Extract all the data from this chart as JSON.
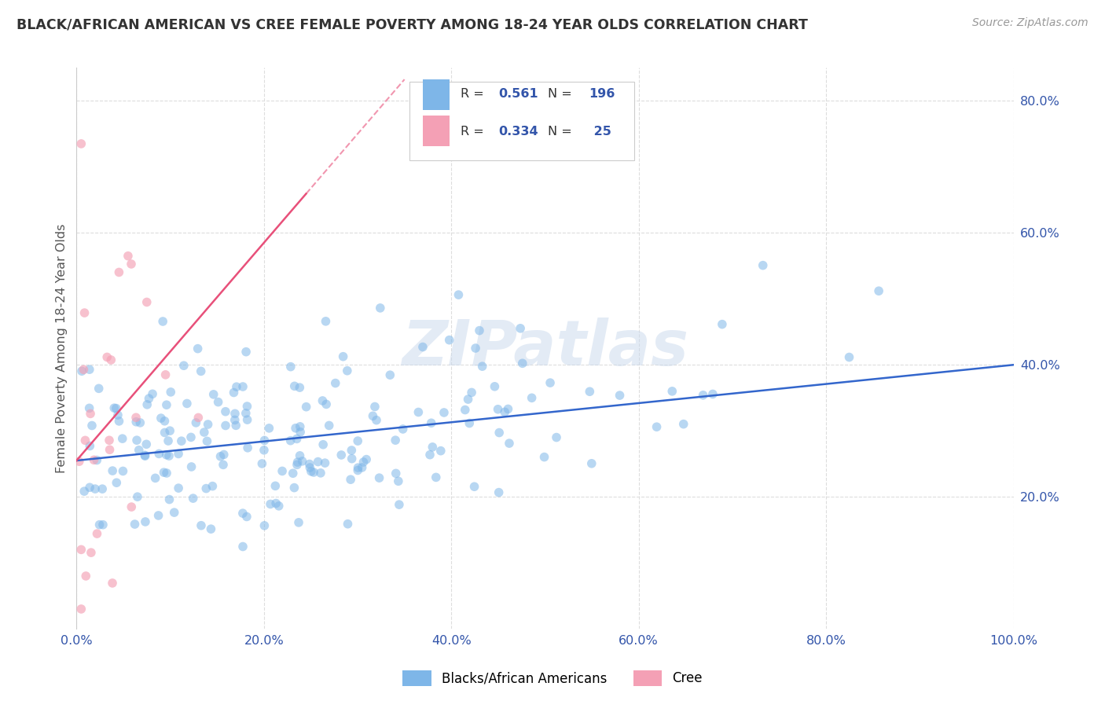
{
  "title": "BLACK/AFRICAN AMERICAN VS CREE FEMALE POVERTY AMONG 18-24 YEAR OLDS CORRELATION CHART",
  "source": "Source: ZipAtlas.com",
  "ylabel": "Female Poverty Among 18-24 Year Olds",
  "xlim": [
    0,
    1.0
  ],
  "ylim": [
    0,
    0.85
  ],
  "xticks": [
    0.0,
    0.2,
    0.4,
    0.6,
    0.8,
    1.0
  ],
  "xticklabels": [
    "0.0%",
    "20.0%",
    "40.0%",
    "60.0%",
    "80.0%",
    "100.0%"
  ],
  "yticks_right": [
    0.2,
    0.4,
    0.6,
    0.8
  ],
  "yticklabels_right": [
    "20.0%",
    "40.0%",
    "60.0%",
    "80.0%"
  ],
  "blue_R": 0.561,
  "blue_N": 196,
  "pink_R": 0.334,
  "pink_N": 25,
  "blue_color": "#7EB6E8",
  "pink_color": "#F4A0B5",
  "blue_line_color": "#3366CC",
  "pink_line_color": "#E8507A",
  "legend_label_blue": "Blacks/African Americans",
  "legend_label_pink": "Cree",
  "watermark": "ZIPatlas",
  "background_color": "#ffffff",
  "grid_color": "#dddddd",
  "title_color": "#333333",
  "tick_color": "#3355AA",
  "axis_label_color": "#555555",
  "blue_slope": 0.145,
  "blue_intercept": 0.255,
  "pink_slope": 1.65,
  "pink_intercept": 0.255,
  "pink_line_x_end": 0.245,
  "pink_line_x_start": 0.0,
  "source_color": "#999999"
}
